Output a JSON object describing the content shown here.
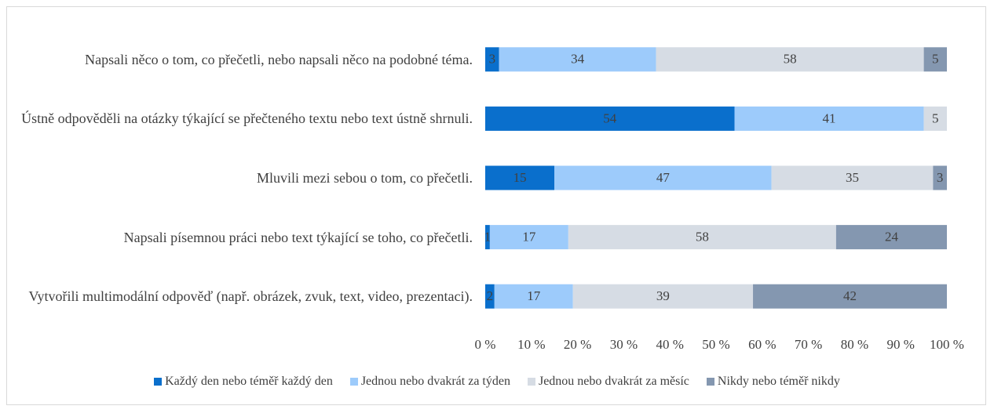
{
  "chart_data": {
    "type": "stacked_barh",
    "categories": [
      "Napsali něco o tom, co přečetli, nebo napsali něco na podobné téma.",
      "Ústně odpověděli na otázky týkající se přečteného textu nebo text ústně shrnuli.",
      "Mluvili mezi sebou o tom, co přečetli.",
      "Napsali písemnou práci nebo text týkající se toho, co přečetli.",
      "Vytvořili multimodální odpověď (např. obrázek, zvuk, text, video, prezentaci)."
    ],
    "series": [
      {
        "name": "Každý den nebo téměř každý den",
        "color": "#0a6fcc",
        "values": [
          3,
          54,
          15,
          1,
          2
        ]
      },
      {
        "name": "Jednou nebo dvakrát za týden",
        "color": "#9dcbfb",
        "values": [
          34,
          41,
          47,
          17,
          17
        ]
      },
      {
        "name": "Jednou nebo dvakrát za měsíc",
        "color": "#d6dce4",
        "values": [
          58,
          5,
          35,
          58,
          39
        ]
      },
      {
        "name": "Nikdy nebo téměř nikdy",
        "color": "#8497b0",
        "values": [
          5,
          null,
          3,
          24,
          42
        ]
      }
    ],
    "xlim": [
      0,
      100
    ],
    "xticks": [
      {
        "value": 0,
        "label": "0 %"
      },
      {
        "value": 10,
        "label": "10 %"
      },
      {
        "value": 20,
        "label": "20 %"
      },
      {
        "value": 30,
        "label": "30 %"
      },
      {
        "value": 40,
        "label": "40 %"
      },
      {
        "value": 50,
        "label": "50 %"
      },
      {
        "value": 60,
        "label": "60 %"
      },
      {
        "value": 70,
        "label": "70 %"
      },
      {
        "value": 80,
        "label": "80 %"
      },
      {
        "value": 90,
        "label": "90 %"
      },
      {
        "value": 100,
        "label": "100 %"
      }
    ],
    "legend": "bottom"
  }
}
